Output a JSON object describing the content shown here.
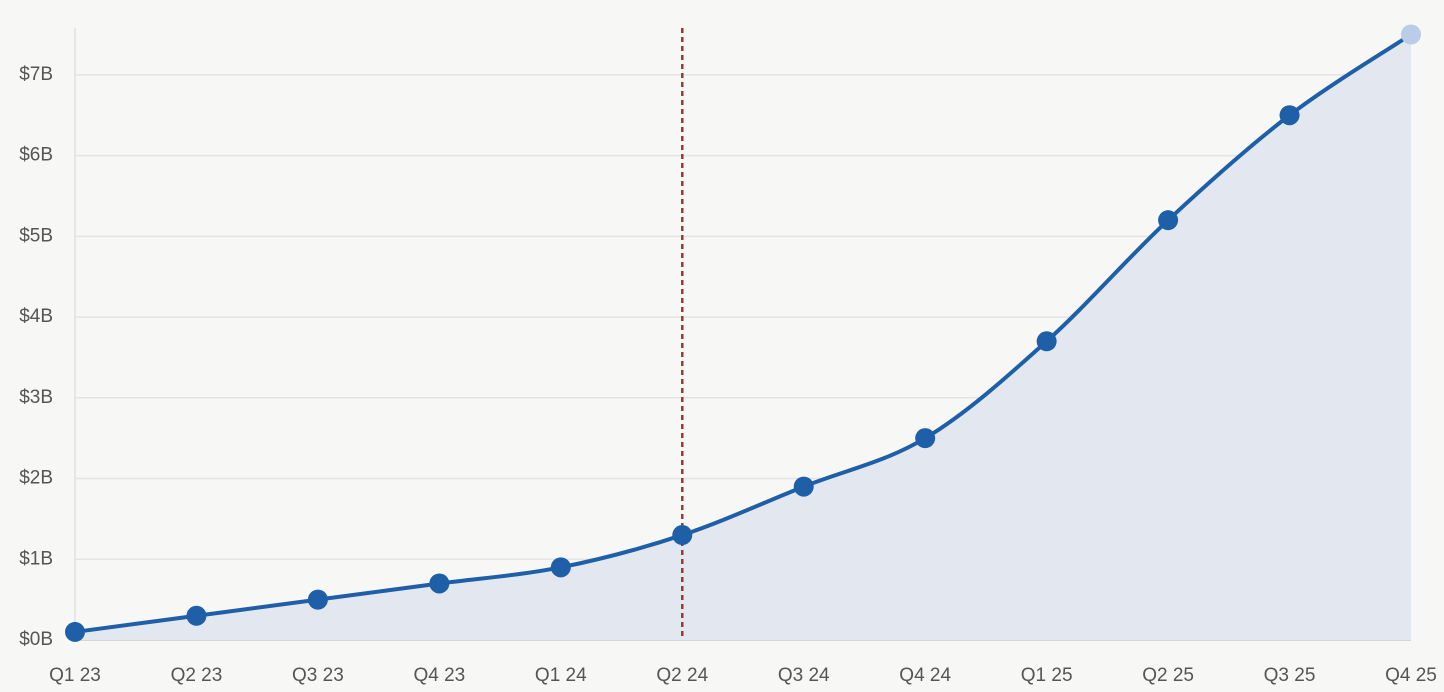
{
  "chart_data": {
    "type": "line",
    "categories": [
      "Q1 23",
      "Q2 23",
      "Q3 23",
      "Q4 23",
      "Q1 24",
      "Q2 24",
      "Q3 24",
      "Q4 24",
      "Q1 25",
      "Q2 25",
      "Q3 25",
      "Q4 25"
    ],
    "series": [
      {
        "color": "#1f5fa8",
        "values": [
          0.1,
          0.3,
          0.5,
          0.7,
          0.9,
          1.3,
          1.9,
          2.5,
          3.7,
          5.2,
          6.5,
          7.5
        ]
      }
    ],
    "area_color": "#e3e8f0",
    "last_point_color": "#b9cde8",
    "vline_category": "Q2 24",
    "vline_color": "#9b3a2e",
    "ylim": [
      0,
      7.5
    ],
    "yticks": [
      {
        "value": 0,
        "label": "$0B"
      },
      {
        "value": 1,
        "label": "$1B"
      },
      {
        "value": 2,
        "label": "$2B"
      },
      {
        "value": 3,
        "label": "$3B"
      },
      {
        "value": 4,
        "label": "$4B"
      },
      {
        "value": 5,
        "label": "$5B"
      },
      {
        "value": 6,
        "label": "$6B"
      },
      {
        "value": 7,
        "label": "$7B"
      }
    ],
    "grid": true
  }
}
